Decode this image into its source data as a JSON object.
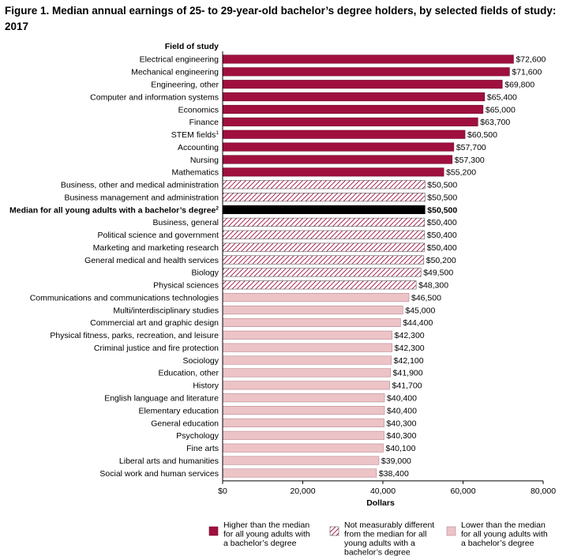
{
  "title": "Figure 1. Median annual earnings of 25- to 29-year-old bachelor’s degree holders, by selected fields of study: 2017",
  "colors": {
    "higher": "#a0103f",
    "same_stroke": "#a0103f",
    "lower": "#ecc3c7",
    "lower_stroke": "#b8868c",
    "median": "#000000"
  },
  "chart_data": {
    "type": "bar",
    "orientation": "horizontal",
    "category_axis_title": "Field of study",
    "xlabel": "Dollars",
    "xlim": [
      0,
      80000
    ],
    "xticks": [
      0,
      20000,
      40000,
      60000,
      80000
    ],
    "xtick_labels": [
      "$0",
      "20,000",
      "40,000",
      "60,000",
      "80,000"
    ],
    "grid": false,
    "legend_position": "bottom",
    "legend": [
      {
        "key": "higher",
        "label_lines": [
          "Higher than the median",
          "for all young adults with",
          "a bachelor’s degree"
        ]
      },
      {
        "key": "same",
        "label_lines": [
          "Not measurably different",
          "from the median for all",
          "young adults with a",
          "bachelor’s degree"
        ]
      },
      {
        "key": "lower",
        "label_lines": [
          "Lower than the median",
          "for all young adults with",
          "a bachelor’s degree"
        ]
      }
    ],
    "bars": [
      {
        "label": "Electrical engineering",
        "value": 72600,
        "value_label": "$72,600",
        "group": "higher"
      },
      {
        "label": "Mechanical engineering",
        "value": 71600,
        "value_label": "$71,600",
        "group": "higher"
      },
      {
        "label": "Engineering, other",
        "value": 69800,
        "value_label": "$69,800",
        "group": "higher"
      },
      {
        "label": "Computer and information systems",
        "value": 65400,
        "value_label": "$65,400",
        "group": "higher"
      },
      {
        "label": "Economics",
        "value": 65000,
        "value_label": "$65,000",
        "group": "higher"
      },
      {
        "label": "Finance",
        "value": 63700,
        "value_label": "$63,700",
        "group": "higher"
      },
      {
        "label": "STEM fields",
        "label_sup": "1",
        "value": 60500,
        "value_label": "$60,500",
        "group": "higher"
      },
      {
        "label": "Accounting",
        "value": 57700,
        "value_label": "$57,700",
        "group": "higher"
      },
      {
        "label": "Nursing",
        "value": 57300,
        "value_label": "$57,300",
        "group": "higher"
      },
      {
        "label": "Mathematics",
        "value": 55200,
        "value_label": "$55,200",
        "group": "higher"
      },
      {
        "label": "Business, other and medical administration",
        "value": 50500,
        "value_label": "$50,500",
        "group": "same"
      },
      {
        "label": "Business management and administration",
        "value": 50500,
        "value_label": "$50,500",
        "group": "same"
      },
      {
        "label": "Median for all young adults with a bachelor’s degree",
        "label_sup": "2",
        "value": 50500,
        "value_label": "$50,500",
        "group": "median"
      },
      {
        "label": "Business, general",
        "value": 50400,
        "value_label": "$50,400",
        "group": "same"
      },
      {
        "label": "Political science and government",
        "value": 50400,
        "value_label": "$50,400",
        "group": "same"
      },
      {
        "label": "Marketing and marketing research",
        "value": 50400,
        "value_label": "$50,400",
        "group": "same"
      },
      {
        "label": "General medical and health services",
        "value": 50200,
        "value_label": "$50,200",
        "group": "same"
      },
      {
        "label": "Biology",
        "value": 49500,
        "value_label": "$49,500",
        "group": "same"
      },
      {
        "label": "Physical sciences",
        "value": 48300,
        "value_label": "$48,300",
        "group": "same"
      },
      {
        "label": "Communications and communications technologies",
        "value": 46500,
        "value_label": "$46,500",
        "group": "lower"
      },
      {
        "label": "Multi/interdisciplinary studies",
        "value": 45000,
        "value_label": "$45,000",
        "group": "lower"
      },
      {
        "label": "Commercial art and graphic design",
        "value": 44400,
        "value_label": "$44,400",
        "group": "lower"
      },
      {
        "label": "Physical fitness, parks, recreation, and leisure",
        "value": 42300,
        "value_label": "$42,300",
        "group": "lower"
      },
      {
        "label": "Criminal justice and fire protection",
        "value": 42300,
        "value_label": "$42,300",
        "group": "lower"
      },
      {
        "label": "Sociology",
        "value": 42100,
        "value_label": "$42,100",
        "group": "lower"
      },
      {
        "label": "Education, other",
        "value": 41900,
        "value_label": "$41,900",
        "group": "lower"
      },
      {
        "label": "History",
        "value": 41700,
        "value_label": "$41,700",
        "group": "lower"
      },
      {
        "label": "English language and literature",
        "value": 40400,
        "value_label": "$40,400",
        "group": "lower"
      },
      {
        "label": "Elementary education",
        "value": 40400,
        "value_label": "$40,400",
        "group": "lower"
      },
      {
        "label": "General education",
        "value": 40300,
        "value_label": "$40,300",
        "group": "lower"
      },
      {
        "label": "Psychology",
        "value": 40300,
        "value_label": "$40,300",
        "group": "lower"
      },
      {
        "label": "Fine arts",
        "value": 40100,
        "value_label": "$40,100",
        "group": "lower"
      },
      {
        "label": "Liberal arts and humanities",
        "value": 39000,
        "value_label": "$39,000",
        "group": "lower"
      },
      {
        "label": "Social work and human services",
        "value": 38400,
        "value_label": "$38,400",
        "group": "lower"
      }
    ]
  }
}
